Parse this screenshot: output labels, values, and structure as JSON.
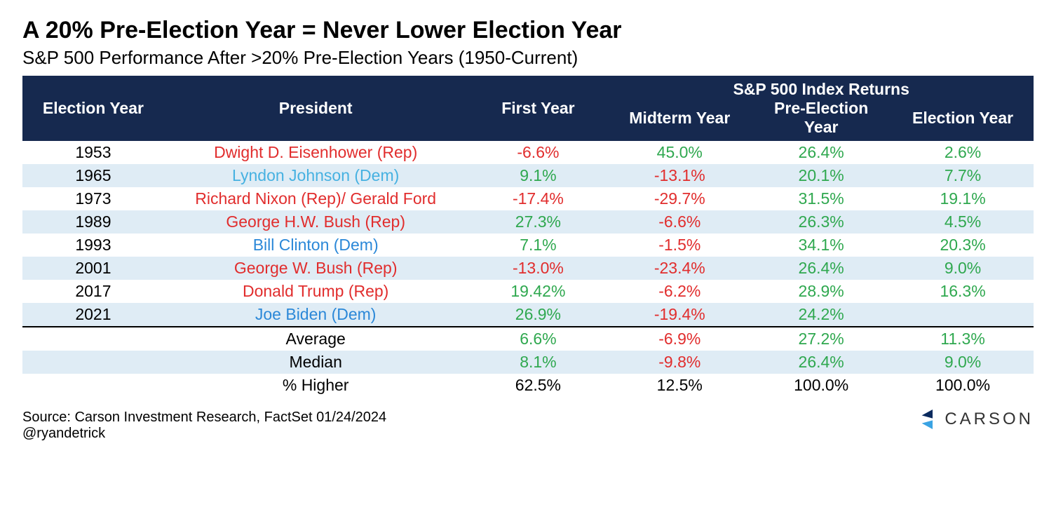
{
  "title": "A 20% Pre-Election Year = Never Lower Election Year",
  "subtitle": "S&P 500 Performance After >20% Pre-Election Years (1950-Current)",
  "table": {
    "type": "table",
    "header_bg": "#16294f",
    "header_fg": "#ffffff",
    "stripe_colors": [
      "#ffffff",
      "#dfecf5"
    ],
    "fontsize": 23,
    "party_colors": {
      "Rep": "#e12d2d",
      "Dem": "#2b88d8",
      "Dem_alt": "#46b1e1"
    },
    "value_colors": {
      "positive": "#2fa84f",
      "negative": "#e12d2d",
      "neutral": "#000000"
    },
    "group_header": "S&P 500 Index Returns",
    "columns": [
      {
        "key": "year",
        "label": "Election Year",
        "align": "center"
      },
      {
        "key": "president",
        "label": "President",
        "align": "center"
      },
      {
        "key": "first_year",
        "label": "First Year",
        "align": "center"
      },
      {
        "key": "midterm",
        "label": "Midterm Year",
        "align": "center"
      },
      {
        "key": "preelect",
        "label": "Pre-Election Year",
        "align": "center"
      },
      {
        "key": "elect",
        "label": "Election Year",
        "align": "center"
      }
    ],
    "rows": [
      {
        "year": "1953",
        "president": "Dwight D. Eisenhower (Rep)",
        "party": "Rep",
        "first_year": {
          "text": "-6.6%",
          "sign": -1
        },
        "midterm": {
          "text": "45.0%",
          "sign": 1
        },
        "preelect": {
          "text": "26.4%",
          "sign": 1
        },
        "elect": {
          "text": "2.6%",
          "sign": 1
        }
      },
      {
        "year": "1965",
        "president": "Lyndon Johnson (Dem)",
        "party": "Dem_alt",
        "first_year": {
          "text": "9.1%",
          "sign": 1
        },
        "midterm": {
          "text": "-13.1%",
          "sign": -1
        },
        "preelect": {
          "text": "20.1%",
          "sign": 1
        },
        "elect": {
          "text": "7.7%",
          "sign": 1
        }
      },
      {
        "year": "1973",
        "president": "Richard Nixon (Rep)/ Gerald Ford",
        "party": "Rep",
        "first_year": {
          "text": "-17.4%",
          "sign": -1
        },
        "midterm": {
          "text": "-29.7%",
          "sign": -1
        },
        "preelect": {
          "text": "31.5%",
          "sign": 1
        },
        "elect": {
          "text": "19.1%",
          "sign": 1
        }
      },
      {
        "year": "1989",
        "president": "George H.W. Bush (Rep)",
        "party": "Rep",
        "first_year": {
          "text": "27.3%",
          "sign": 1
        },
        "midterm": {
          "text": "-6.6%",
          "sign": -1
        },
        "preelect": {
          "text": "26.3%",
          "sign": 1
        },
        "elect": {
          "text": "4.5%",
          "sign": 1
        }
      },
      {
        "year": "1993",
        "president": "Bill Clinton (Dem)",
        "party": "Dem",
        "first_year": {
          "text": "7.1%",
          "sign": 1
        },
        "midterm": {
          "text": "-1.5%",
          "sign": -1
        },
        "preelect": {
          "text": "34.1%",
          "sign": 1
        },
        "elect": {
          "text": "20.3%",
          "sign": 1
        }
      },
      {
        "year": "2001",
        "president": "George W. Bush (Rep)",
        "party": "Rep",
        "first_year": {
          "text": "-13.0%",
          "sign": -1
        },
        "midterm": {
          "text": "-23.4%",
          "sign": -1
        },
        "preelect": {
          "text": "26.4%",
          "sign": 1
        },
        "elect": {
          "text": "9.0%",
          "sign": 1
        }
      },
      {
        "year": "2017",
        "president": "Donald Trump (Rep)",
        "party": "Rep",
        "first_year": {
          "text": "19.42%",
          "sign": 1
        },
        "midterm": {
          "text": "-6.2%",
          "sign": -1
        },
        "preelect": {
          "text": "28.9%",
          "sign": 1
        },
        "elect": {
          "text": "16.3%",
          "sign": 1
        }
      },
      {
        "year": "2021",
        "president": "Joe Biden (Dem)",
        "party": "Dem",
        "first_year": {
          "text": "26.9%",
          "sign": 1
        },
        "midterm": {
          "text": "-19.4%",
          "sign": -1
        },
        "preelect": {
          "text": "24.2%",
          "sign": 1
        },
        "elect": {
          "text": "",
          "sign": 0
        }
      }
    ],
    "summary": [
      {
        "label": "Average",
        "first_year": {
          "text": "6.6%",
          "sign": 1
        },
        "midterm": {
          "text": "-6.9%",
          "sign": -1
        },
        "preelect": {
          "text": "27.2%",
          "sign": 1
        },
        "elect": {
          "text": "11.3%",
          "sign": 1
        }
      },
      {
        "label": "Median",
        "first_year": {
          "text": "8.1%",
          "sign": 1
        },
        "midterm": {
          "text": "-9.8%",
          "sign": -1
        },
        "preelect": {
          "text": "26.4%",
          "sign": 1
        },
        "elect": {
          "text": "9.0%",
          "sign": 1
        }
      },
      {
        "label": "% Higher",
        "first_year": {
          "text": "62.5%",
          "sign": 0
        },
        "midterm": {
          "text": "12.5%",
          "sign": 0
        },
        "preelect": {
          "text": "100.0%",
          "sign": 0
        },
        "elect": {
          "text": "100.0%",
          "sign": 0
        }
      }
    ]
  },
  "footer": {
    "source": "Source: Carson Investment Research, FactSet 01/24/2024",
    "handle": "@ryandetrick",
    "logo_text": "CARSON",
    "logo_colors": {
      "dark": "#0a2a5e",
      "light": "#3aa3e3"
    }
  }
}
